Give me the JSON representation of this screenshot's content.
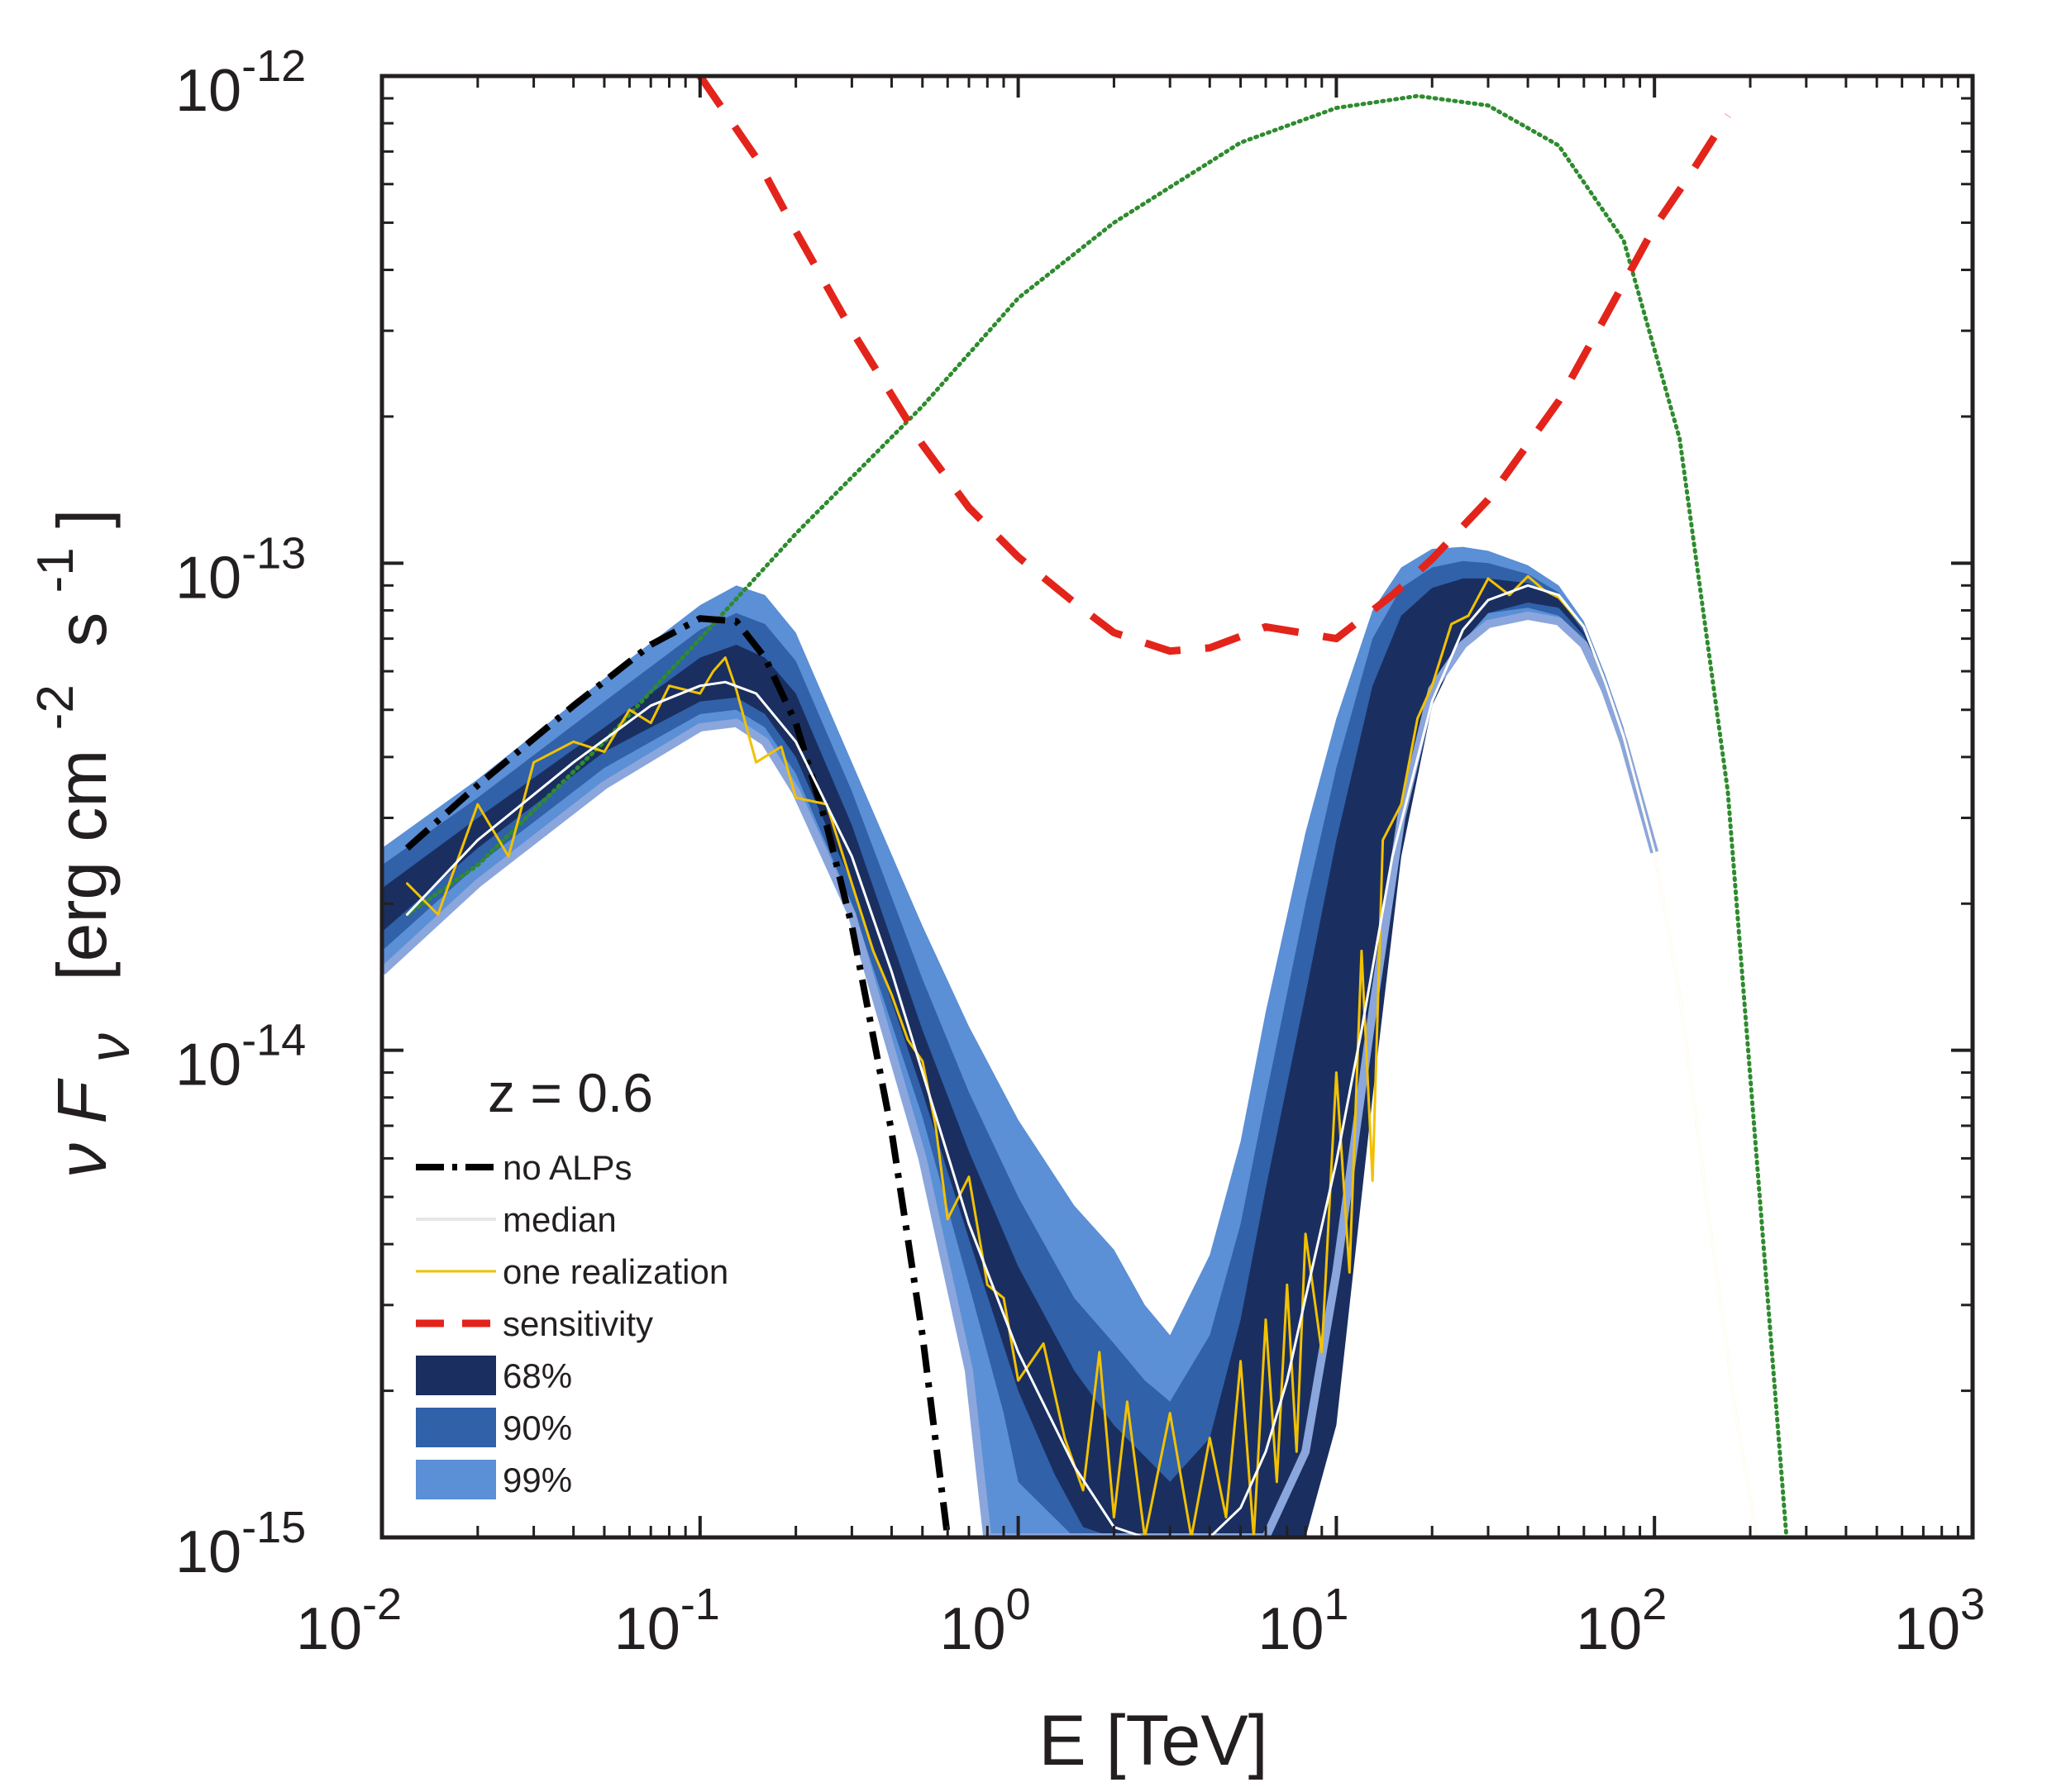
{
  "chart_data": {
    "type": "line",
    "xlabel": "E [TeV]",
    "ylabel_prefix": "ν F",
    "ylabel_sub": "ν",
    "ylabel_unit": "[erg cm",
    "ylabel_sup1": "-2",
    "ylabel_mid": "s",
    "ylabel_sup2": "-1",
    "ylabel_close": "]",
    "x_scale": "log",
    "y_scale": "log",
    "xlim": [
      0.01,
      1000
    ],
    "ylim": [
      1e-15,
      1e-12
    ],
    "grid": false,
    "legend_position": "lower-left",
    "annotation": "z = 0.6",
    "x_ticks": [
      {
        "base": "10",
        "exp": "-2",
        "value": 0.01
      },
      {
        "base": "10",
        "exp": "-1",
        "value": 0.1
      },
      {
        "base": "10",
        "exp": "0",
        "value": 1
      },
      {
        "base": "10",
        "exp": "1",
        "value": 10
      },
      {
        "base": "10",
        "exp": "2",
        "value": 100
      },
      {
        "base": "10",
        "exp": "3",
        "value": 1000
      }
    ],
    "y_ticks": [
      {
        "base": "10",
        "exp": "-15",
        "value": 1e-15
      },
      {
        "base": "10",
        "exp": "-14",
        "value": 1e-14
      },
      {
        "base": "10",
        "exp": "-13",
        "value": 1e-13
      },
      {
        "base": "10",
        "exp": "-12",
        "value": 1e-12
      }
    ],
    "colors": {
      "band_99": "#5b8fd6",
      "band_90": "#3061a9",
      "band_68": "#1a2f60",
      "band_lower_edge": "#8aa6dc",
      "no_alps": "#000000",
      "median": "#ffffff",
      "one_realization": "#f2c100",
      "sensitivity": "#e3241b",
      "intrinsic": "#2e8b2e"
    },
    "legend": [
      {
        "key": "no_alps",
        "label": "no ALPs",
        "style": "dash-dot"
      },
      {
        "key": "median",
        "label": "median",
        "style": "solid-light"
      },
      {
        "key": "one_realization",
        "label": "one realization",
        "style": "solid-thin"
      },
      {
        "key": "sensitivity",
        "label": "sensitivity",
        "style": "dashed"
      },
      {
        "key": "band_68",
        "label": "68%",
        "style": "patch"
      },
      {
        "key": "band_90",
        "label": "90%",
        "style": "patch"
      },
      {
        "key": "band_99",
        "label": "99%",
        "style": "patch"
      }
    ],
    "series": [
      {
        "key": "intrinsic",
        "style": "dotted",
        "x": [
          0.012,
          0.02,
          0.05,
          0.1,
          0.2,
          0.5,
          1,
          2,
          5,
          10,
          18,
          30,
          50,
          80,
          120,
          170,
          220,
          260
        ],
        "y": [
          1.9e-14,
          2.4e-14,
          4.3e-14,
          7e-14,
          1.15e-13,
          2.1e-13,
          3.5e-13,
          5e-13,
          7.3e-13,
          8.6e-13,
          9.1e-13,
          8.7e-13,
          7.2e-13,
          4.6e-13,
          1.8e-13,
          3.4e-14,
          4e-15,
          1e-15
        ]
      },
      {
        "key": "sensitivity",
        "style": "dashed",
        "x": [
          0.1,
          0.15,
          0.2,
          0.3,
          0.5,
          0.7,
          1,
          1.5,
          2,
          3,
          4,
          6,
          10,
          15,
          20,
          30,
          50,
          70,
          100,
          130,
          170
        ],
        "y": [
          1e-12,
          6.8e-13,
          4.8e-13,
          3e-13,
          1.75e-13,
          1.3e-13,
          1.03e-13,
          8.3e-14,
          7.2e-14,
          6.6e-14,
          6.7e-14,
          7.4e-14,
          7e-14,
          8.6e-14,
          1.02e-13,
          1.35e-13,
          2.15e-13,
          3.2e-13,
          4.9e-13,
          6.3e-13,
          8.3e-13
        ]
      },
      {
        "key": "no_alps",
        "style": "dash-dot",
        "x": [
          0.012,
          0.02,
          0.04,
          0.07,
          0.1,
          0.13,
          0.16,
          0.2,
          0.25,
          0.3,
          0.4,
          0.5,
          0.6
        ],
        "y": [
          2.6e-14,
          3.5e-14,
          5.1e-14,
          6.8e-14,
          7.7e-14,
          7.6e-14,
          6.4e-14,
          4.7e-14,
          2.9e-14,
          1.8e-14,
          6.8e-15,
          2.6e-15,
          1e-15
        ]
      },
      {
        "key": "median",
        "style": "solid-light",
        "x": [
          0.012,
          0.02,
          0.04,
          0.07,
          0.1,
          0.12,
          0.15,
          0.2,
          0.3,
          0.4,
          0.5,
          0.7,
          1,
          1.5,
          2,
          2.5,
          3,
          4,
          5,
          6,
          7,
          8,
          10,
          12,
          15,
          20,
          25,
          30,
          40,
          50,
          60,
          70,
          80,
          100,
          120,
          150,
          180,
          210
        ],
        "y": [
          1.9e-14,
          2.7e-14,
          3.9e-14,
          5.1e-14,
          5.6e-14,
          5.7e-14,
          5.4e-14,
          4.3e-14,
          2.5e-14,
          1.45e-14,
          9e-15,
          4.4e-15,
          2.4e-15,
          1.4e-15,
          1.05e-15,
          1e-15,
          1e-15,
          1e-15,
          1.15e-15,
          1.5e-15,
          2.1e-15,
          3.1e-15,
          5.9e-15,
          1.1e-14,
          2.5e-14,
          5.2e-14,
          7.3e-14,
          8.4e-14,
          9e-14,
          8.6e-14,
          7.4e-14,
          5.7e-14,
          4.4e-14,
          2.55e-14,
          1.3e-14,
          4.3e-15,
          1.8e-15,
          1e-15
        ]
      },
      {
        "key": "one_realization",
        "style": "solid-thin",
        "x": [
          0.012,
          0.015,
          0.02,
          0.025,
          0.03,
          0.04,
          0.05,
          0.06,
          0.07,
          0.08,
          0.1,
          0.11,
          0.12,
          0.13,
          0.15,
          0.18,
          0.2,
          0.25,
          0.3,
          0.35,
          0.4,
          0.45,
          0.5,
          0.55,
          0.6,
          0.7,
          0.8,
          0.9,
          1,
          1.2,
          1.4,
          1.6,
          1.8,
          2,
          2.2,
          2.5,
          3,
          3.5,
          4,
          4.5,
          5,
          5.5,
          6,
          6.5,
          7,
          7.5,
          8,
          9,
          10,
          11,
          12,
          13,
          14,
          16,
          18,
          20,
          23,
          26,
          30,
          35,
          40,
          45,
          50,
          60,
          70,
          80,
          100,
          120,
          150,
          180,
          210
        ],
        "y": [
          2.2e-14,
          1.9e-14,
          3.2e-14,
          2.5e-14,
          3.9e-14,
          4.3e-14,
          4.1e-14,
          5e-14,
          4.7e-14,
          5.6e-14,
          5.4e-14,
          6e-14,
          6.4e-14,
          5.5e-14,
          3.9e-14,
          4.2e-14,
          3.3e-14,
          3.2e-14,
          2.2e-14,
          1.6e-14,
          1.3e-14,
          1.05e-14,
          9.5e-15,
          7e-15,
          4.5e-15,
          5.5e-15,
          3.3e-15,
          3.1e-15,
          2.1e-15,
          2.5e-15,
          1.6e-15,
          1.25e-15,
          2.4e-15,
          1.1e-15,
          1.9e-15,
          1e-15,
          1.8e-15,
          1e-15,
          1.6e-15,
          1.1e-15,
          2.3e-15,
          1e-15,
          2.8e-15,
          1.3e-15,
          3.3e-15,
          1.5e-15,
          4.2e-15,
          2.4e-15,
          9e-15,
          3.5e-15,
          1.6e-14,
          5.4e-15,
          2.7e-14,
          3.2e-14,
          4.8e-14,
          5.6e-14,
          7.5e-14,
          7.8e-14,
          9.3e-14,
          8.6e-14,
          9.4e-14,
          8.8e-14,
          8.5e-14,
          7.4e-14,
          5.7e-14,
          4.4e-14,
          2.55e-14,
          1.3e-14,
          4.3e-15,
          1.8e-15,
          1e-15
        ]
      }
    ],
    "bands": [
      {
        "key": "band_99",
        "upper": {
          "x": [
            0.01,
            0.02,
            0.05,
            0.1,
            0.13,
            0.16,
            0.2,
            0.3,
            0.5,
            0.7,
            1,
            1.5,
            2,
            2.5,
            3,
            4,
            5,
            6,
            8,
            10,
            13,
            16,
            20,
            25,
            30,
            40,
            50,
            60,
            70,
            80,
            100
          ],
          "y": [
            2.6e-14,
            3.6e-14,
            5.8e-14,
            8.2e-14,
            9e-14,
            8.6e-14,
            7.2e-14,
            3.9e-14,
            1.8e-14,
            1.12e-14,
            7.2e-15,
            4.8e-15,
            3.9e-15,
            3e-15,
            2.6e-15,
            3.8e-15,
            6.5e-15,
            1.2e-14,
            2.8e-14,
            4.8e-14,
            8e-14,
            9.8e-14,
            1.07e-13,
            1.08e-13,
            1.06e-13,
            9.9e-14,
            9e-14,
            7.6e-14,
            5.9e-14,
            4.6e-14,
            2.55e-14
          ]
        },
        "lower": {
          "x": [
            0.01,
            0.02,
            0.05,
            0.1,
            0.13,
            0.16,
            0.2,
            0.3,
            0.5,
            0.7,
            0.8,
            1,
            1.5,
            2,
            2.5,
            3,
            4,
            5,
            6,
            8,
            10,
            13,
            16,
            20,
            25,
            30,
            40,
            50,
            60,
            70,
            80,
            100
          ],
          "y": [
            1.45e-14,
            2.2e-14,
            3.5e-14,
            4.6e-14,
            4.7e-14,
            4.3e-14,
            3.4e-14,
            1.9e-14,
            6e-15,
            2.2e-15,
            1e-15,
            1e-15,
            1e-15,
            1e-15,
            1e-15,
            1e-15,
            1e-15,
            1e-15,
            1e-15,
            1.5e-15,
            3.5e-15,
            1.2e-14,
            3e-14,
            5.5e-14,
            6.8e-14,
            7.5e-14,
            7.8e-14,
            7.6e-14,
            6.8e-14,
            5.5e-14,
            4.3e-14,
            2.55e-14
          ]
        }
      },
      {
        "key": "band_90",
        "upper": {
          "x": [
            0.01,
            0.02,
            0.05,
            0.1,
            0.13,
            0.16,
            0.2,
            0.3,
            0.5,
            0.7,
            1,
            1.5,
            2,
            2.5,
            3,
            4,
            5,
            6,
            8,
            10,
            13,
            16,
            20,
            25,
            30,
            40,
            50,
            60,
            70,
            80,
            100
          ],
          "y": [
            2.4e-14,
            3.3e-14,
            5.2e-14,
            7.3e-14,
            7.9e-14,
            7.5e-14,
            6.3e-14,
            3.4e-14,
            1.4e-14,
            8.2e-15,
            5e-15,
            3.1e-15,
            2.5e-15,
            2.1e-15,
            1.9e-15,
            2.6e-15,
            4.4e-15,
            8e-15,
            2e-14,
            3.8e-14,
            7e-14,
            8.9e-14,
            9.8e-14,
            1.01e-13,
            1e-13,
            9.5e-14,
            8.7e-14,
            7.4e-14,
            5.8e-14,
            4.5e-14,
            2.55e-14
          ]
        },
        "lower": {
          "x": [
            0.01,
            0.02,
            0.05,
            0.1,
            0.13,
            0.16,
            0.2,
            0.3,
            0.5,
            0.7,
            0.9,
            1,
            1.5,
            2,
            3,
            4,
            5,
            6,
            8,
            9,
            10,
            13,
            16,
            20,
            25,
            30,
            40,
            50,
            60,
            70,
            80,
            100
          ],
          "y": [
            1.6e-14,
            2.4e-14,
            3.8e-14,
            4.9e-14,
            5e-14,
            4.6e-14,
            3.7e-14,
            2e-14,
            7.3e-15,
            3.3e-15,
            1.8e-15,
            1.3e-15,
            1e-15,
            1e-15,
            1e-15,
            1e-15,
            1e-15,
            1e-15,
            1.2e-15,
            1.6e-15,
            2.3e-15,
            1.1e-14,
            3.2e-14,
            5.9e-14,
            7.3e-14,
            7.9e-14,
            8.1e-14,
            7.8e-14,
            6.9e-14,
            5.6e-14,
            4.3e-14,
            2.55e-14
          ]
        }
      },
      {
        "key": "band_68",
        "upper": {
          "x": [
            0.01,
            0.02,
            0.05,
            0.1,
            0.13,
            0.16,
            0.2,
            0.3,
            0.5,
            0.7,
            1,
            1.5,
            2,
            3,
            4,
            5,
            6,
            8,
            10,
            13,
            16,
            20,
            25,
            30,
            40,
            50,
            60,
            70,
            80,
            100
          ],
          "y": [
            2.15e-14,
            3e-14,
            4.6e-14,
            6.4e-14,
            6.8e-14,
            6.4e-14,
            5.4e-14,
            2.9e-14,
            1.1e-14,
            6.2e-15,
            3.6e-15,
            2.2e-15,
            1.7e-15,
            1.3e-15,
            1.6e-15,
            2.8e-15,
            5.2e-15,
            1.3e-14,
            2.7e-14,
            5.6e-14,
            7.8e-14,
            8.9e-14,
            9.3e-14,
            9.3e-14,
            9.1e-14,
            8.5e-14,
            7.2e-14,
            5.8e-14,
            4.5e-14,
            2.55e-14
          ]
        },
        "lower": {
          "x": [
            0.01,
            0.02,
            0.05,
            0.1,
            0.13,
            0.16,
            0.2,
            0.3,
            0.5,
            0.7,
            1,
            1.3,
            1.6,
            2,
            4,
            6,
            8,
            10,
            13,
            16,
            20,
            25,
            30,
            40,
            50,
            60,
            70,
            80,
            100
          ],
          "y": [
            1.75e-14,
            2.6e-14,
            4.1e-14,
            5.2e-14,
            5.3e-14,
            4.9e-14,
            4e-14,
            2.2e-14,
            8.2e-15,
            4.1e-15,
            2e-15,
            1.35e-15,
            1.05e-15,
            1e-15,
            1e-15,
            1e-15,
            1e-15,
            1.7e-15,
            8e-15,
            2.5e-14,
            5.1e-14,
            6.9e-14,
            7.9e-14,
            8.3e-14,
            8.1e-14,
            7.1e-14,
            5.7e-14,
            4.4e-14,
            2.55e-14
          ]
        }
      }
    ]
  }
}
